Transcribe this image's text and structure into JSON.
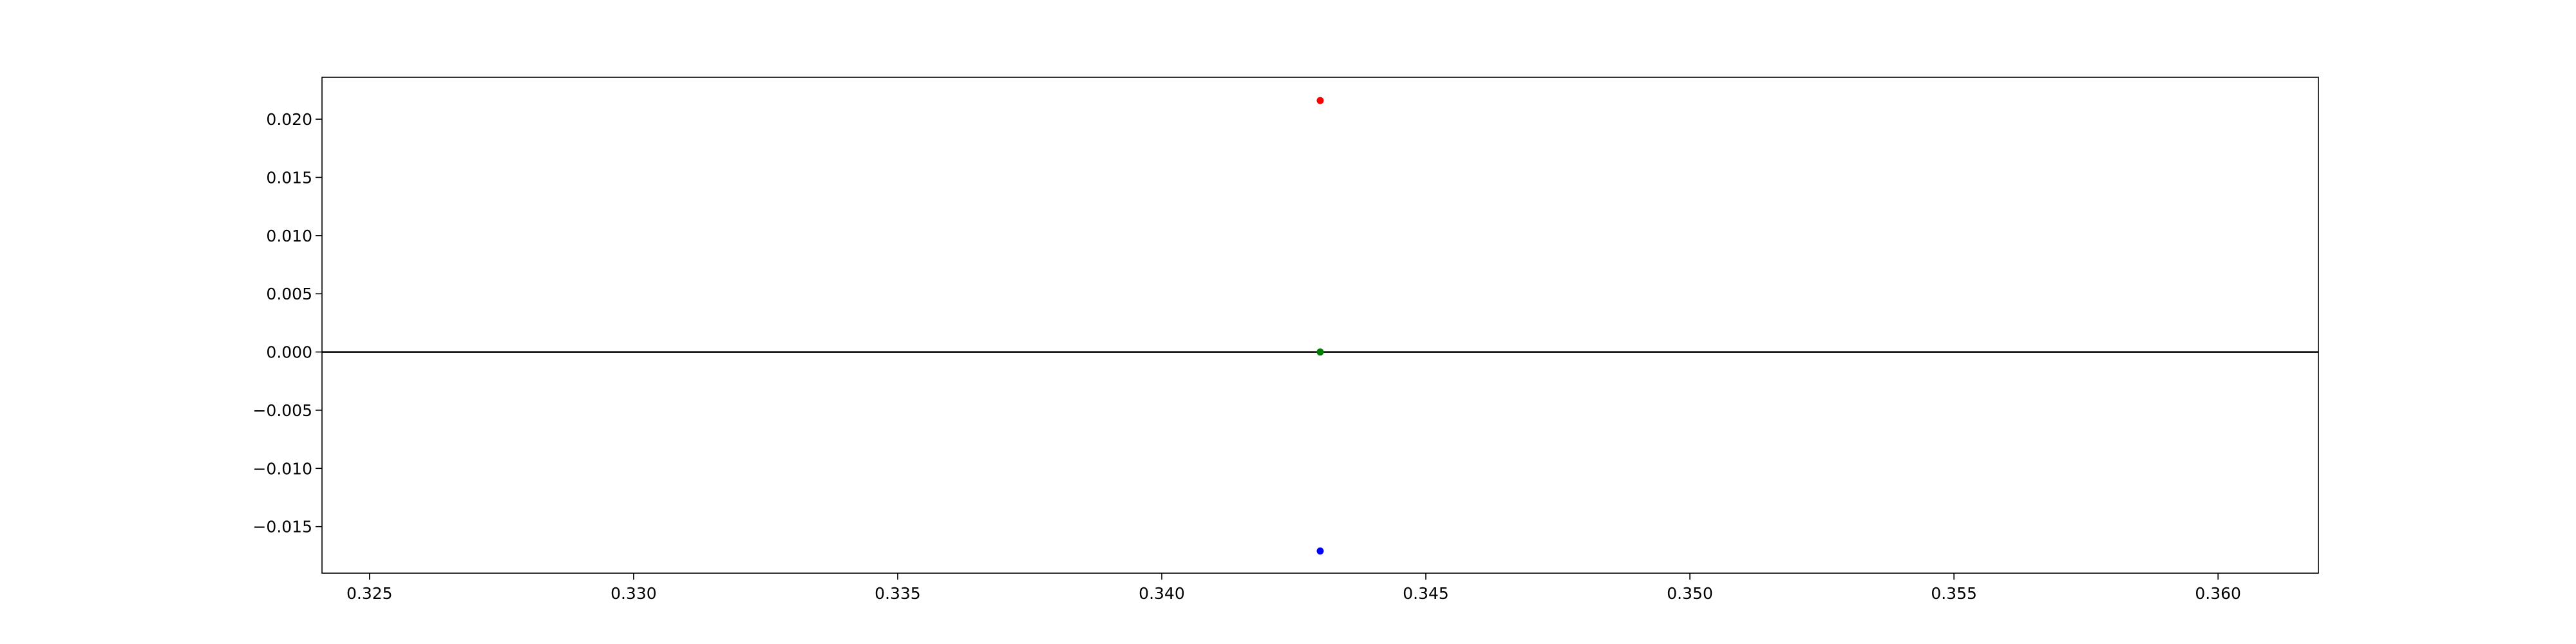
{
  "chart_data": {
    "type": "scatter",
    "title": "",
    "xlabel": "",
    "ylabel": "",
    "xlim": [
      0.3241,
      0.3619
    ],
    "ylim": [
      -0.019,
      0.0236
    ],
    "xticks": [
      0.325,
      0.33,
      0.335,
      0.34,
      0.345,
      0.35,
      0.355,
      0.36
    ],
    "xtick_labels": [
      "0.325",
      "0.330",
      "0.335",
      "0.340",
      "0.345",
      "0.350",
      "0.355",
      "0.360"
    ],
    "yticks": [
      0.02,
      0.015,
      0.01,
      0.005,
      0.0,
      -0.005,
      -0.01,
      -0.015
    ],
    "ytick_labels": [
      "0.020",
      "0.015",
      "0.010",
      "0.005",
      "0.000",
      "−0.005",
      "−0.010",
      "−0.015"
    ],
    "hline_y": 0.0,
    "grid": false,
    "legend": false,
    "points": [
      {
        "x": 0.343,
        "y": 0.0216,
        "color": "#ff0000"
      },
      {
        "x": 0.343,
        "y": 0.0,
        "color": "#008000"
      },
      {
        "x": 0.343,
        "y": -0.0171,
        "color": "#0000ff"
      }
    ]
  }
}
